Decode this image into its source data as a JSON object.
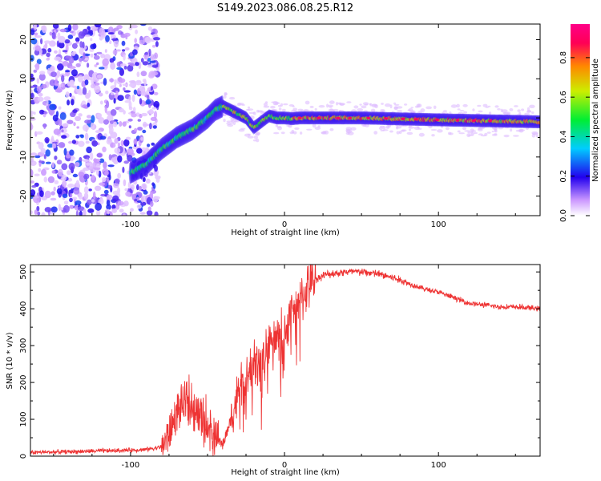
{
  "title": "S149.2023.086.08.25.R12",
  "chart_data": [
    {
      "type": "heatmap",
      "xlabel": "Height of straight line (km)",
      "ylabel": "Frequency (Hz)",
      "xlim": [
        -165,
        166
      ],
      "ylim": [
        -25,
        24
      ],
      "xticks": [
        -100,
        0,
        100
      ],
      "yticks": [
        -20,
        -10,
        0,
        10,
        20
      ],
      "colorbar": {
        "label": "Normalized spectral amplitude",
        "range": [
          0,
          0.97
        ],
        "ticks": [
          "0.0",
          "0.2",
          "0.4",
          "0.6",
          "0.8"
        ],
        "tick_values": [
          0.0,
          0.2,
          0.4,
          0.6,
          0.8
        ]
      },
      "ridge": {
        "x": [
          -100,
          -90,
          -80,
          -70,
          -60,
          -50,
          -45,
          -40,
          -35,
          -30,
          -25,
          -20,
          -15,
          -10,
          -5,
          0,
          5,
          10,
          50,
          100,
          166
        ],
        "y": [
          -14,
          -12,
          -8,
          -5,
          -3,
          0,
          2,
          3,
          2,
          1,
          0,
          -2.5,
          -1,
          0.5,
          0,
          0,
          -0.2,
          0,
          0,
          -0.5,
          -1
        ],
        "peak_amplitude": 0.9
      },
      "noise_region": {
        "x_from": -165,
        "x_to": -88,
        "amplitude": 0.15
      }
    },
    {
      "type": "line",
      "xlabel": "Height of straight line (km)",
      "ylabel": "SNR (10 * v/v)",
      "xlim": [
        -165,
        166
      ],
      "ylim": [
        0,
        520
      ],
      "xticks": [
        -100,
        0,
        100
      ],
      "yticks": [
        0,
        100,
        200,
        300,
        400,
        500
      ],
      "color": "#ee3333",
      "series": [
        {
          "x": [
            -165,
            -140,
            -110,
            -90,
            -80,
            -75,
            -70,
            -65,
            -60,
            -55,
            -50,
            -45,
            -40,
            -35,
            -30,
            -25,
            -20,
            -15,
            -10,
            -5,
            0,
            5,
            10,
            15,
            20,
            25,
            30,
            40,
            50,
            60,
            70,
            80,
            90,
            100,
            110,
            120,
            130,
            140,
            150,
            166
          ],
          "y": [
            10,
            12,
            15,
            18,
            25,
            60,
            120,
            140,
            120,
            100,
            80,
            40,
            30,
            100,
            170,
            200,
            250,
            260,
            300,
            320,
            340,
            380,
            420,
            460,
            480,
            490,
            495,
            500,
            500,
            495,
            485,
            470,
            455,
            445,
            430,
            415,
            410,
            405,
            405,
            400
          ]
        }
      ]
    }
  ]
}
